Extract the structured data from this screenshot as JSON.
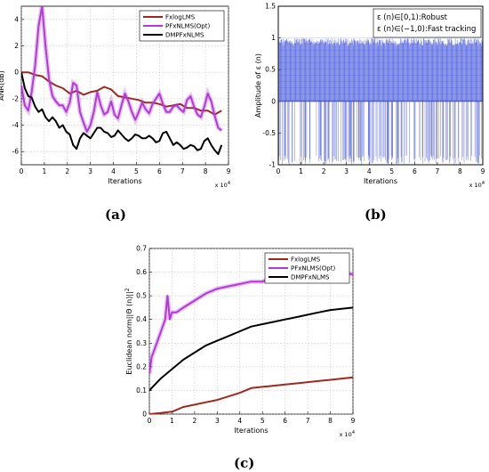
{
  "chart_data": [
    {
      "panel": "(a)",
      "type": "line",
      "xlabel": "Iterations",
      "ylabel": "ANR(dB)",
      "x_multiplier_label": "x 10^4",
      "xlim": [
        0,
        9
      ],
      "ylim": [
        -7,
        5
      ],
      "xticks": [
        0,
        1,
        2,
        3,
        4,
        5,
        6,
        7,
        8,
        9
      ],
      "yticks": [
        -6,
        -4,
        -2,
        0,
        2,
        4
      ],
      "grid": true,
      "legend_position": "top-right",
      "series": [
        {
          "name": "FxlogLMS",
          "color": "#a0281e",
          "x": [
            0,
            0.3,
            0.6,
            0.9,
            1.2,
            1.5,
            1.8,
            2.1,
            2.4,
            2.7,
            3.0,
            3.3,
            3.6,
            3.9,
            4.2,
            4.5,
            4.8,
            5.1,
            5.4,
            5.7,
            6.0,
            6.3,
            6.6,
            6.9,
            7.2,
            7.5,
            7.8,
            8.1,
            8.4,
            8.7
          ],
          "values": [
            0,
            0,
            -0.2,
            -0.3,
            -0.7,
            -1.0,
            -1.2,
            -1.6,
            -1.4,
            -1.7,
            -1.5,
            -1.4,
            -1.1,
            -1.3,
            -1.8,
            -1.9,
            -2.0,
            -2.1,
            -2.3,
            -2.3,
            -2.4,
            -2.6,
            -2.5,
            -2.4,
            -2.7,
            -2.7,
            -2.9,
            -2.9,
            -3.2,
            -2.9
          ]
        },
        {
          "name": "PFxNLMS(Opt)",
          "color": "#b23ad8",
          "x": [
            0,
            0.15,
            0.3,
            0.45,
            0.6,
            0.75,
            0.9,
            1.05,
            1.2,
            1.35,
            1.5,
            1.65,
            1.8,
            1.95,
            2.1,
            2.25,
            2.4,
            2.55,
            2.7,
            2.85,
            3.0,
            3.15,
            3.3,
            3.45,
            3.6,
            3.75,
            3.9,
            4.05,
            4.2,
            4.35,
            4.5,
            4.65,
            4.8,
            4.95,
            5.1,
            5.25,
            5.4,
            5.55,
            5.7,
            5.85,
            6.0,
            6.15,
            6.3,
            6.45,
            6.6,
            6.75,
            6.9,
            7.05,
            7.2,
            7.35,
            7.5,
            7.65,
            7.8,
            7.95,
            8.1,
            8.25,
            8.4,
            8.55,
            8.7
          ],
          "values": [
            -1.0,
            -2.5,
            -2.9,
            -1.5,
            0.5,
            3.5,
            5.0,
            2.0,
            -0.5,
            -1.8,
            -2.2,
            -2.5,
            -2.5,
            -3.0,
            -2.3,
            -0.8,
            -1.0,
            -3.0,
            -3.8,
            -4.5,
            -4.0,
            -3.0,
            -1.5,
            -2.5,
            -3.2,
            -3.0,
            -2.2,
            -3.2,
            -3.5,
            -2.5,
            -1.6,
            -2.2,
            -3.0,
            -3.6,
            -3.0,
            -2.3,
            -2.8,
            -3.1,
            -2.4,
            -2.0,
            -1.6,
            -2.4,
            -3.0,
            -3.0,
            -2.6,
            -2.5,
            -2.8,
            -3.0,
            -2.1,
            -1.8,
            -2.6,
            -3.2,
            -3.4,
            -2.6,
            -1.6,
            -2.2,
            -3.3,
            -4.2,
            -4.4
          ]
        },
        {
          "name": "DMPFxNLMS",
          "color": "#000000",
          "x": [
            0,
            0.15,
            0.3,
            0.45,
            0.6,
            0.75,
            0.9,
            1.05,
            1.2,
            1.35,
            1.5,
            1.65,
            1.8,
            1.95,
            2.1,
            2.25,
            2.4,
            2.55,
            2.7,
            2.85,
            3.0,
            3.15,
            3.3,
            3.45,
            3.6,
            3.75,
            3.9,
            4.05,
            4.2,
            4.35,
            4.5,
            4.65,
            4.8,
            4.95,
            5.1,
            5.25,
            5.4,
            5.55,
            5.7,
            5.85,
            6.0,
            6.15,
            6.3,
            6.45,
            6.6,
            6.75,
            6.9,
            7.05,
            7.2,
            7.35,
            7.5,
            7.65,
            7.8,
            7.95,
            8.1,
            8.25,
            8.4,
            8.55,
            8.7
          ],
          "values": [
            0,
            -1.2,
            -1.8,
            -1.9,
            -2.6,
            -3.0,
            -2.8,
            -3.4,
            -3.7,
            -3.4,
            -3.7,
            -4.2,
            -4.0,
            -4.5,
            -4.7,
            -5.5,
            -5.8,
            -5.0,
            -4.6,
            -4.8,
            -5.0,
            -4.6,
            -4.2,
            -4.2,
            -4.5,
            -4.6,
            -4.9,
            -4.8,
            -4.4,
            -4.7,
            -5.0,
            -5.2,
            -5.0,
            -4.7,
            -4.8,
            -5.0,
            -5.0,
            -4.8,
            -5.0,
            -5.3,
            -5.2,
            -4.6,
            -4.5,
            -5.0,
            -5.5,
            -5.3,
            -5.5,
            -5.8,
            -5.7,
            -5.5,
            -5.6,
            -5.9,
            -5.8,
            -5.2,
            -5.0,
            -5.5,
            -5.9,
            -6.2,
            -5.5
          ]
        }
      ]
    },
    {
      "panel": "(b)",
      "type": "line",
      "xlabel": "Iterations",
      "ylabel": "Amplitude of ε (n)",
      "x_multiplier_label": "x 10^4",
      "xlim": [
        0,
        9
      ],
      "ylim": [
        -1,
        1.5
      ],
      "xticks": [
        0,
        1,
        2,
        3,
        4,
        5,
        6,
        7,
        8,
        9
      ],
      "yticks": [
        -1,
        -0.5,
        0,
        0.5,
        1,
        1.5
      ],
      "grid": false,
      "color": "#2a3fd8",
      "annotation_lines": [
        "ε (n)∈[0,1):Robust",
        "ε (n)∈(−1,0):Fast tracking"
      ],
      "description_values": {
        "upper_band_max": 1,
        "lower_band_min": -1,
        "upper_band_density": "dense",
        "lower_band_density": "sparse"
      }
    },
    {
      "panel": "(c)",
      "type": "line",
      "xlabel": "Iterations",
      "ylabel": "Euclidean norm||Θ (n)||^2",
      "x_multiplier_label": "x 10^4",
      "xlim": [
        0,
        9
      ],
      "ylim": [
        0,
        0.7
      ],
      "xticks": [
        0,
        1,
        2,
        3,
        4,
        5,
        6,
        7,
        8,
        9
      ],
      "yticks": [
        0,
        0.1,
        0.2,
        0.3,
        0.4,
        0.5,
        0.6,
        0.7
      ],
      "grid": true,
      "legend_position": "top-right",
      "series": [
        {
          "name": "FxlogLMS",
          "color": "#a0281e",
          "x": [
            0,
            0.5,
            1.0,
            1.5,
            2.0,
            2.5,
            3.0,
            3.5,
            4.0,
            4.5,
            5.0,
            5.5,
            6.0,
            6.5,
            7.0,
            7.5,
            8.0,
            8.5,
            9.0
          ],
          "values": [
            0.0,
            0.005,
            0.01,
            0.03,
            0.04,
            0.05,
            0.06,
            0.075,
            0.09,
            0.11,
            0.115,
            0.12,
            0.125,
            0.13,
            0.135,
            0.14,
            0.145,
            0.15,
            0.155
          ]
        },
        {
          "name": "PFxNLMS(Opt)",
          "color": "#b23ad8",
          "x": [
            0,
            0.1,
            0.25,
            0.4,
            0.55,
            0.7,
            0.8,
            0.9,
            1.0,
            1.2,
            1.5,
            2.0,
            2.5,
            3.0,
            3.5,
            4.0,
            4.5,
            5.0,
            5.5,
            6.0,
            6.5,
            7.0,
            7.5,
            7.8,
            8.0,
            8.5,
            9.0
          ],
          "values": [
            0.17,
            0.24,
            0.28,
            0.32,
            0.36,
            0.4,
            0.5,
            0.4,
            0.43,
            0.43,
            0.45,
            0.48,
            0.51,
            0.53,
            0.54,
            0.55,
            0.56,
            0.56,
            0.58,
            0.58,
            0.58,
            0.59,
            0.6,
            0.63,
            0.61,
            0.6,
            0.59
          ]
        },
        {
          "name": "DMPFxNLMS",
          "color": "#000000",
          "x": [
            0,
            0.2,
            0.5,
            1.0,
            1.5,
            2.0,
            2.5,
            3.0,
            3.5,
            4.0,
            4.5,
            5.0,
            5.5,
            6.0,
            6.5,
            7.0,
            7.5,
            8.0,
            8.5,
            9.0
          ],
          "values": [
            0.1,
            0.12,
            0.15,
            0.19,
            0.23,
            0.26,
            0.29,
            0.31,
            0.33,
            0.35,
            0.37,
            0.38,
            0.39,
            0.4,
            0.41,
            0.42,
            0.43,
            0.44,
            0.445,
            0.45
          ]
        }
      ]
    }
  ]
}
